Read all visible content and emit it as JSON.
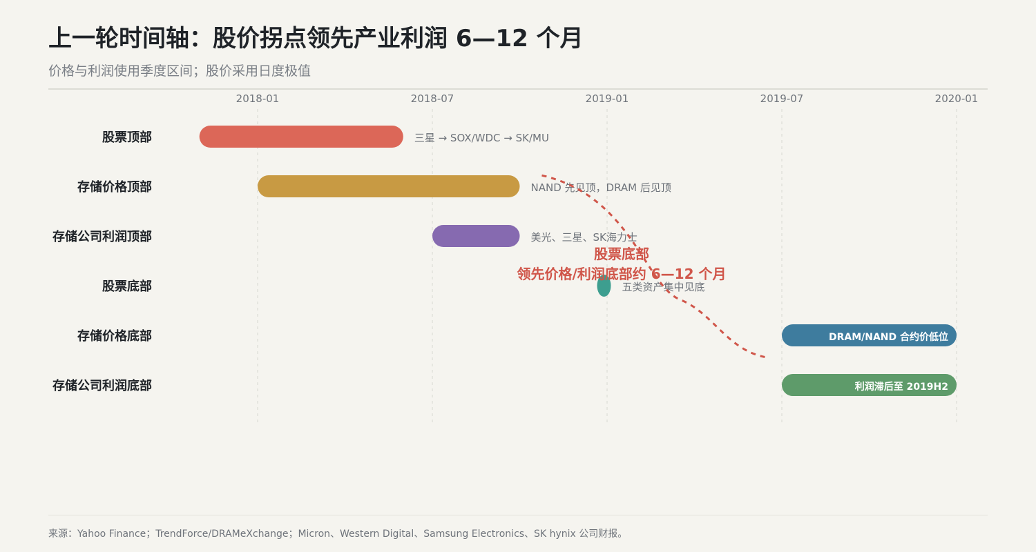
{
  "title": "上一轮时间轴：股价拐点领先产业利润 6—12 个月",
  "subtitle": "价格与利润使用季度区间；股价采用日度极值",
  "source": "来源：Yahoo Finance；TrendForce/DRAMeXchange；Micron、Western Digital、Samsung Electronics、SK hynix 公司财报。",
  "chart_data": {
    "type": "timeline",
    "x_axis": {
      "type": "date",
      "range": [
        "2018-01",
        "2020-01"
      ],
      "ticks": [
        "2018-01",
        "2018-07",
        "2019-01",
        "2019-07",
        "2020-01"
      ],
      "grid": true
    },
    "rows": [
      {
        "label": "股票顶部",
        "start": "2017-11",
        "end": "2018-06",
        "color": "#dc6758",
        "note": "三星 → SOX/WDC → SK/MU",
        "note_position": "outside"
      },
      {
        "label": "存储价格顶部",
        "start": "2018-01",
        "end": "2018-10",
        "color": "#c89a43",
        "note": "NAND 先见顶，DRAM 后见顶",
        "note_position": "outside"
      },
      {
        "label": "存储公司利润顶部",
        "start": "2018-07",
        "end": "2018-10",
        "color": "#866ab0",
        "note": "美光、三星、SK海力士",
        "note_position": "outside"
      },
      {
        "label": "股票底部",
        "start": "2018-12-21",
        "end": "2018-12-31",
        "color": "#3d9e8f",
        "note": "五类资产集中见底",
        "note_position": "outside"
      },
      {
        "label": "存储价格底部",
        "start": "2019-07",
        "end": "2020-01",
        "color": "#3e7c9e",
        "note": "DRAM/NAND 合约价低位",
        "note_position": "inside"
      },
      {
        "label": "存储公司利润底部",
        "start": "2019-07",
        "end": "2020-01",
        "color": "#5e9b6a",
        "note": "利润滞后至 2019H2",
        "note_position": "inside"
      }
    ],
    "annotation": {
      "line1": "股票底部",
      "line2": "领先价格/利润底部约 6—12 个月",
      "color": "#d0564a",
      "arrow_style": "dashed",
      "from": "2018-10",
      "to": "2019-07"
    }
  }
}
